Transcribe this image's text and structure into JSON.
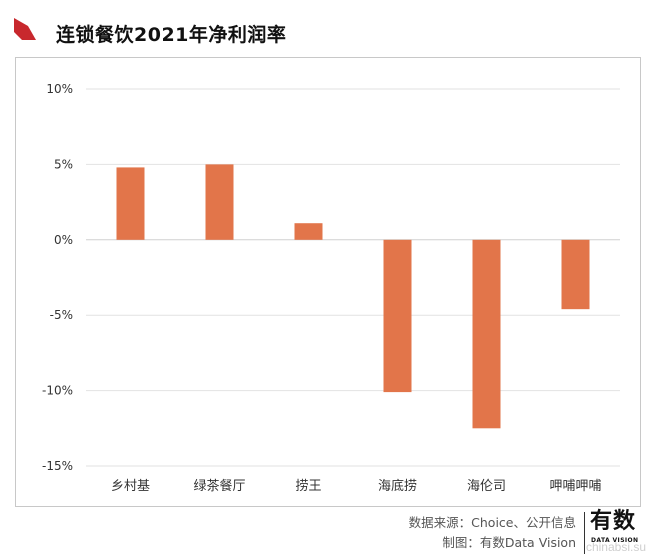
{
  "title": "连锁餐饮2021年净利润率",
  "accent_color": "#c8282d",
  "bar_color": "#e2754a",
  "source": "数据来源：Choice、公开信息",
  "credit": "制图：有数Data Vision",
  "logo": {
    "main": "有数",
    "sub": "DATA VISION"
  },
  "watermark": "chinabsi.su",
  "chart_data": {
    "type": "bar",
    "title": "连锁餐饮2021年净利润率",
    "categories": [
      "乡村基",
      "绿茶餐厅",
      "捞王",
      "海底捞",
      "海伦司",
      "呷哺呷哺"
    ],
    "values": [
      4.8,
      5.0,
      1.1,
      -10.1,
      -12.5,
      -4.6
    ],
    "unit": "%",
    "ylim": [
      -15,
      10
    ],
    "yticks": [
      10,
      5,
      0,
      -5,
      -10,
      -15
    ],
    "ytick_labels": [
      "10%",
      "5%",
      "0%",
      "-5%",
      "-10%",
      "-15%"
    ],
    "grid": true,
    "legend": "none"
  }
}
